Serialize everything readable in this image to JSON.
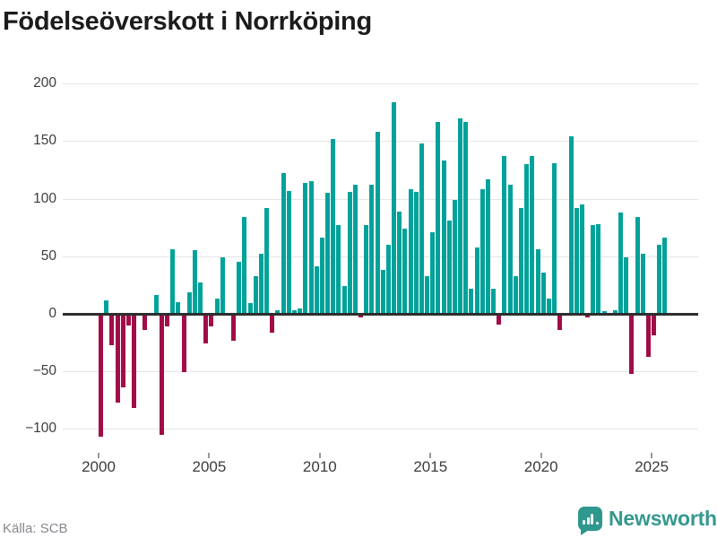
{
  "title": "Födelseöverskott i Norrköping",
  "source_text": "Källa: SCB",
  "logo": {
    "text": "Newsworthy",
    "icon": "newsworthy-speech-bubble-chart-icon"
  },
  "colors": {
    "positive_bar": "#00a29a",
    "negative_bar": "#a00d47",
    "gridline": "#e4e4e4",
    "zero_axis": "#2e2e2e",
    "title_text": "#1c1c1c",
    "tick_label": "#3c3c3c",
    "source_text": "#87878f",
    "logo_teal": "#35988e"
  },
  "chart_data": {
    "type": "bar",
    "title": "Födelseöverskott i Norrköping",
    "period": "quarterly",
    "start": "2000 Q1",
    "end": "2025 Q3",
    "xlabel": "",
    "ylabel": "",
    "grid": true,
    "legend": "none",
    "x_ticks": [
      2000,
      2005,
      2010,
      2015,
      2020,
      2025
    ],
    "y_ticks": [
      200,
      150,
      100,
      50,
      0,
      -50,
      -100
    ],
    "ylim": [
      -115,
      210
    ],
    "values": [
      -107,
      12,
      -27,
      -77,
      -64,
      -10,
      -82,
      0,
      -14,
      0,
      16,
      -105,
      -11,
      56,
      10,
      -51,
      19,
      55,
      27,
      -26,
      -11,
      13,
      49,
      0,
      -23,
      45,
      84,
      9,
      33,
      52,
      92,
      -16,
      3,
      122,
      107,
      3,
      5,
      114,
      115,
      41,
      66,
      105,
      152,
      77,
      24,
      106,
      112,
      -3,
      77,
      112,
      158,
      38,
      60,
      184,
      89,
      74,
      108,
      106,
      148,
      33,
      71,
      167,
      133,
      81,
      99,
      170,
      167,
      22,
      58,
      108,
      117,
      22,
      -9,
      137,
      112,
      33,
      92,
      130,
      137,
      56,
      36,
      13,
      131,
      -14,
      0,
      154,
      92,
      95,
      -3,
      77,
      78,
      2,
      1,
      3,
      88,
      49,
      -52,
      84,
      52,
      -37,
      -19,
      60,
      66
    ]
  }
}
